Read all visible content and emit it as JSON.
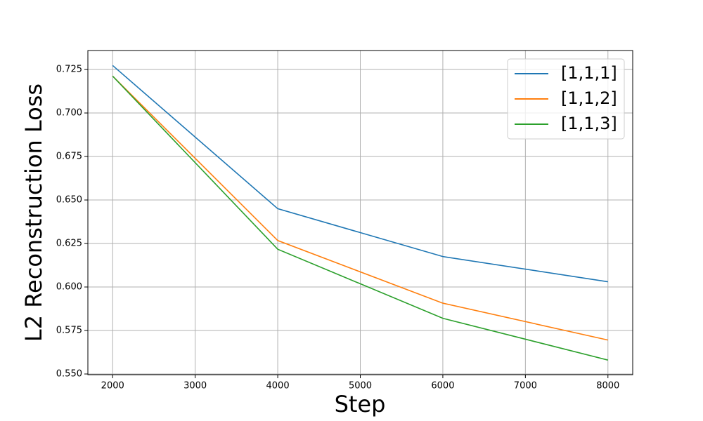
{
  "chart_data": {
    "type": "line",
    "x_label": "Step",
    "y_label": "L2 Reconstruction Loss",
    "x": [
      2000,
      4000,
      6000,
      8000
    ],
    "series": [
      {
        "name": "[1,1,1]",
        "color": "#1f77b4",
        "values": [
          0.7273,
          0.645,
          0.6175,
          0.603
        ]
      },
      {
        "name": "[1,1,2]",
        "color": "#ff7f0e",
        "values": [
          0.7212,
          0.6267,
          0.5907,
          0.5695
        ]
      },
      {
        "name": "[1,1,3]",
        "color": "#2ca02c",
        "values": [
          0.7212,
          0.6217,
          0.582,
          0.558
        ]
      }
    ],
    "xlim": [
      1700,
      8300
    ],
    "xticks": [
      2000,
      3000,
      4000,
      5000,
      6000,
      7000,
      8000
    ],
    "ylim": [
      0.5496,
      0.7359
    ],
    "yticks": [
      {
        "value": 0.55,
        "label": "0.550"
      },
      0.575,
      {
        "value": 0.6,
        "label": "0.600"
      },
      0.625,
      {
        "value": 0.65,
        "label": "0.650"
      },
      0.675,
      {
        "value": 0.7,
        "label": "0.700"
      },
      0.725
    ],
    "grid": true,
    "legend": "upper right"
  }
}
